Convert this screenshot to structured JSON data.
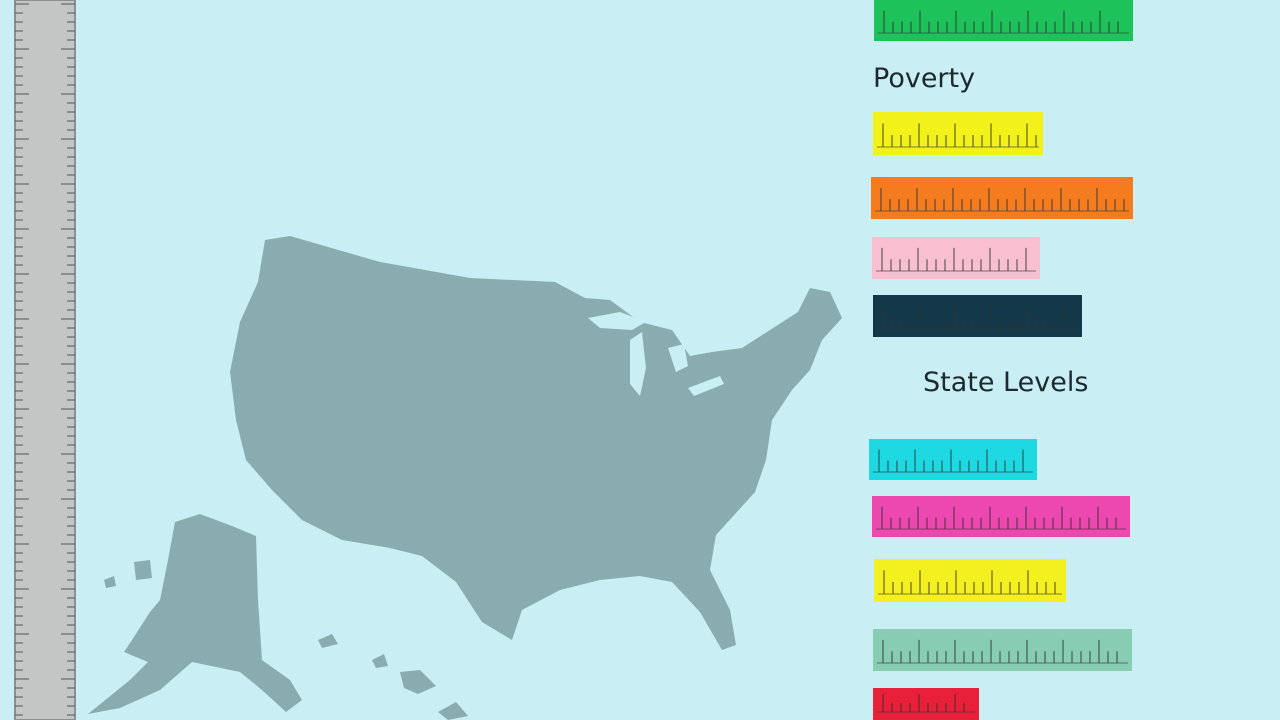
{
  "labels": {
    "poverty": "Poverty",
    "state_levels": "State Levels"
  }
}
